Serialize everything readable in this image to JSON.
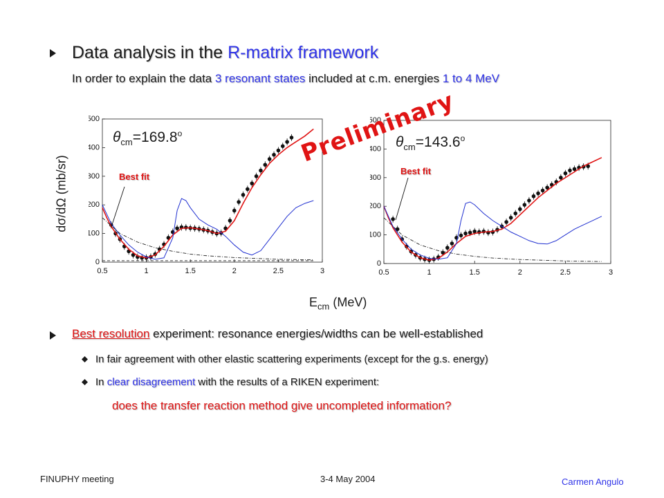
{
  "heading": {
    "pre": "Data analysis in the ",
    "highlight": "R-matrix framework"
  },
  "subline": {
    "t1": "In order to explain the data ",
    "t2": "3 resonant states",
    "t3": " included at c.m. energies ",
    "t4": "1 to 4 MeV"
  },
  "ylabel": "dσ/dΩ (mb/sr)",
  "xlabel": {
    "main": "E",
    "sub": "cm",
    "unit": " (MeV)"
  },
  "preliminary": "Preliminary",
  "bullet2": {
    "highlight": "Best resolution",
    "rest": " experiment: resonance energies/widths can be well-established"
  },
  "sub1": "In fair agreement with other elastic scattering experiments (except for the g.s. energy)",
  "sub2": {
    "t1": "In ",
    "t2": "clear disagreement",
    "t3": " with the results of a RIKEN experiment:"
  },
  "question": "does the transfer reaction method give uncompleted information?",
  "footer": {
    "left": "FINUPHY meeting",
    "mid": "3-4 May 2004",
    "right": "Carmen Angulo"
  },
  "colors": {
    "accent": "#2f33e8",
    "highlight": "#e01414",
    "fit_curve": "#e01414",
    "other_curve": "#1f2fd0",
    "data_points": "#111111"
  },
  "chart_data": [
    {
      "type": "scatter",
      "annotation": "θcm=169.8°",
      "label_theta": "θ",
      "label_sub": "cm",
      "label_value": "=169.8",
      "label_sup": "o",
      "best_fit_label": "Best fit",
      "xlim": [
        0.5,
        3
      ],
      "ylim": [
        0,
        500
      ],
      "xticks": [
        "0.5",
        "1",
        "1.5",
        "2",
        "2.5",
        "3"
      ],
      "yticks": [
        "0",
        "100",
        "200",
        "300",
        "400",
        "500"
      ],
      "series": [
        {
          "style": "points",
          "x": [
            0.6,
            0.65,
            0.7,
            0.75,
            0.8,
            0.85,
            0.9,
            0.95,
            1.0,
            1.05,
            1.1,
            1.15,
            1.2,
            1.25,
            1.3,
            1.35,
            1.4,
            1.45,
            1.5,
            1.55,
            1.6,
            1.65,
            1.7,
            1.75,
            1.8,
            1.85,
            1.9,
            1.95,
            2.0,
            2.05,
            2.1,
            2.15,
            2.2,
            2.25,
            2.3,
            2.35,
            2.4,
            2.45,
            2.5,
            2.55,
            2.6,
            2.65
          ],
          "y": [
            130,
            100,
            80,
            55,
            38,
            25,
            18,
            15,
            15,
            18,
            28,
            45,
            62,
            85,
            105,
            118,
            122,
            121,
            119,
            118,
            116,
            113,
            110,
            105,
            100,
            102,
            118,
            145,
            180,
            210,
            235,
            255,
            275,
            300,
            320,
            340,
            360,
            375,
            390,
            405,
            420,
            435
          ]
        },
        {
          "style": "red-fit",
          "x": [
            0.5,
            0.55,
            0.6,
            0.7,
            0.8,
            0.9,
            1.0,
            1.1,
            1.2,
            1.3,
            1.4,
            1.5,
            1.6,
            1.7,
            1.8,
            1.9,
            2.0,
            2.1,
            2.2,
            2.3,
            2.4,
            2.5,
            2.6,
            2.7,
            2.8,
            2.9
          ],
          "y": [
            190,
            155,
            125,
            80,
            45,
            22,
            15,
            25,
            55,
            95,
            118,
            120,
            116,
            110,
            100,
            108,
            145,
            205,
            260,
            305,
            345,
            375,
            400,
            420,
            440,
            465
          ]
        },
        {
          "style": "blue-line",
          "x": [
            0.5,
            0.6,
            0.7,
            0.8,
            0.9,
            1.0,
            1.1,
            1.2,
            1.3,
            1.35,
            1.4,
            1.45,
            1.5,
            1.6,
            1.7,
            1.8,
            1.9,
            2.0,
            2.1,
            2.2,
            2.3,
            2.4,
            2.5,
            2.6,
            2.7,
            2.8,
            2.9
          ],
          "y": [
            200,
            135,
            95,
            60,
            35,
            18,
            10,
            15,
            85,
            180,
            222,
            215,
            190,
            150,
            130,
            115,
            90,
            60,
            35,
            25,
            40,
            80,
            120,
            160,
            190,
            205,
            215
          ]
        },
        {
          "style": "dashdot",
          "x": [
            0.5,
            0.7,
            0.9,
            1.1,
            1.3,
            1.5,
            1.7,
            2.0,
            2.5,
            2.9
          ],
          "y": [
            155,
            100,
            70,
            50,
            38,
            28,
            22,
            16,
            10,
            8
          ]
        },
        {
          "style": "dashed",
          "x": [
            0.5,
            0.8,
            1.1,
            1.4,
            1.7,
            2.0,
            2.5,
            2.9
          ],
          "y": [
            5,
            5,
            5,
            5,
            5,
            5,
            5,
            5
          ]
        }
      ]
    },
    {
      "type": "scatter",
      "annotation": "θcm=143.6°",
      "label_theta": "θ",
      "label_sub": "cm",
      "label_value": "=143.6",
      "label_sup": "o",
      "best_fit_label": "Best fit",
      "xlim": [
        0.5,
        3
      ],
      "ylim": [
        0,
        500
      ],
      "xticks": [
        "0.5",
        "1",
        "1.5",
        "2",
        "2.5",
        "3"
      ],
      "yticks": [
        "0",
        "100",
        "200",
        "300",
        "400",
        "500"
      ],
      "series": [
        {
          "style": "points",
          "x": [
            0.6,
            0.65,
            0.7,
            0.75,
            0.8,
            0.85,
            0.9,
            0.95,
            1.0,
            1.05,
            1.1,
            1.15,
            1.2,
            1.25,
            1.3,
            1.35,
            1.4,
            1.45,
            1.5,
            1.55,
            1.6,
            1.65,
            1.7,
            1.75,
            1.8,
            1.85,
            1.9,
            1.95,
            2.0,
            2.05,
            2.1,
            2.15,
            2.2,
            2.25,
            2.3,
            2.35,
            2.4,
            2.45,
            2.5,
            2.55,
            2.6,
            2.65,
            2.7,
            2.75
          ],
          "y": [
            155,
            120,
            85,
            60,
            42,
            30,
            20,
            15,
            12,
            15,
            22,
            38,
            55,
            70,
            90,
            98,
            105,
            108,
            112,
            110,
            112,
            108,
            110,
            118,
            130,
            145,
            160,
            175,
            190,
            205,
            220,
            235,
            245,
            255,
            265,
            275,
            285,
            300,
            315,
            325,
            330,
            335,
            338,
            340
          ]
        },
        {
          "style": "red-fit",
          "x": [
            0.5,
            0.55,
            0.6,
            0.7,
            0.8,
            0.9,
            1.0,
            1.1,
            1.2,
            1.3,
            1.4,
            1.5,
            1.6,
            1.7,
            1.8,
            1.9,
            2.0,
            2.1,
            2.2,
            2.3,
            2.4,
            2.5,
            2.6,
            2.7,
            2.8,
            2.9
          ],
          "y": [
            200,
            160,
            125,
            75,
            40,
            20,
            12,
            18,
            40,
            70,
            95,
            105,
            110,
            112,
            120,
            140,
            170,
            200,
            230,
            255,
            280,
            300,
            320,
            340,
            355,
            370
          ]
        },
        {
          "style": "blue-line",
          "x": [
            0.5,
            0.6,
            0.7,
            0.8,
            0.9,
            1.0,
            1.1,
            1.2,
            1.3,
            1.35,
            1.4,
            1.45,
            1.5,
            1.6,
            1.7,
            1.8,
            1.9,
            2.0,
            2.1,
            2.2,
            2.3,
            2.4,
            2.5,
            2.6,
            2.7,
            2.8,
            2.9
          ],
          "y": [
            200,
            130,
            85,
            50,
            30,
            18,
            15,
            20,
            70,
            150,
            210,
            215,
            205,
            175,
            150,
            130,
            110,
            95,
            80,
            70,
            68,
            80,
            100,
            120,
            135,
            150,
            165
          ]
        },
        {
          "style": "dashdot",
          "x": [
            0.5,
            0.7,
            0.9,
            1.1,
            1.3,
            1.5,
            1.7,
            2.0,
            2.5,
            2.9
          ],
          "y": [
            160,
            100,
            65,
            45,
            33,
            25,
            19,
            14,
            9,
            7
          ]
        }
      ]
    }
  ]
}
